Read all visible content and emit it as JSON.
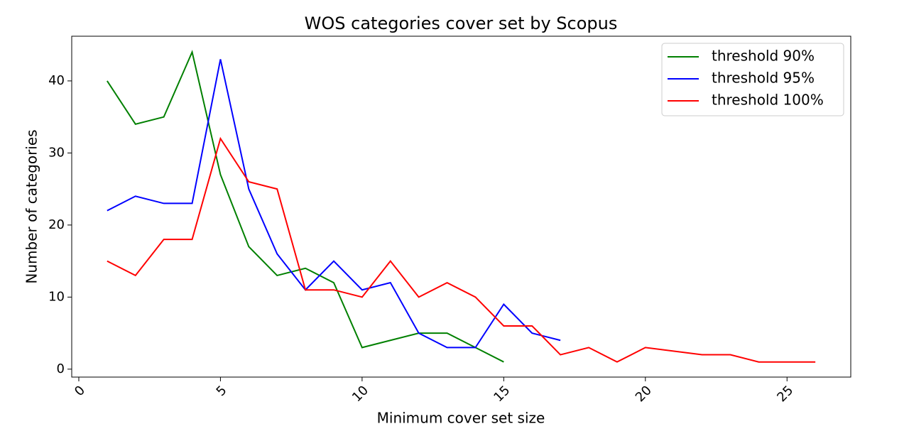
{
  "chart_data": {
    "type": "line",
    "title": "WOS categories cover set by Scopus",
    "xlabel": "Minimum cover set size",
    "ylabel": "Number of categories",
    "xlim": [
      -0.25,
      27.25
    ],
    "ylim": [
      -1.1,
      46.2
    ],
    "xticks": [
      0,
      5,
      10,
      15,
      20,
      25
    ],
    "yticks": [
      0,
      10,
      20,
      30,
      40
    ],
    "legend": "upper right",
    "grid": false,
    "series": [
      {
        "name": "threshold 90%",
        "color": "#008000",
        "x": [
          1,
          2,
          3,
          4,
          5,
          6,
          7,
          8,
          9,
          10,
          11,
          12,
          13,
          14,
          15
        ],
        "values": [
          40,
          34,
          35,
          44,
          27,
          17,
          13,
          14,
          12,
          3,
          4,
          5,
          5,
          3,
          1
        ]
      },
      {
        "name": "threshold 95%",
        "color": "#0000ff",
        "x": [
          1,
          2,
          3,
          4,
          5,
          6,
          7,
          8,
          9,
          10,
          11,
          12,
          13,
          14,
          15,
          16,
          17
        ],
        "values": [
          22,
          24,
          23,
          23,
          43,
          25,
          16,
          11,
          15,
          11,
          12,
          5,
          3,
          3,
          9,
          5,
          4
        ]
      },
      {
        "name": "threshold 100%",
        "color": "#ff0000",
        "x": [
          1,
          2,
          3,
          4,
          5,
          6,
          7,
          8,
          9,
          10,
          11,
          12,
          13,
          14,
          15,
          16,
          17,
          18,
          19,
          20,
          22,
          23,
          24,
          25,
          26
        ],
        "values": [
          15,
          13,
          18,
          18,
          32,
          26,
          25,
          11,
          11,
          10,
          15,
          10,
          12,
          10,
          6,
          6,
          2,
          3,
          1,
          3,
          2,
          2,
          1,
          1,
          1
        ]
      }
    ]
  }
}
